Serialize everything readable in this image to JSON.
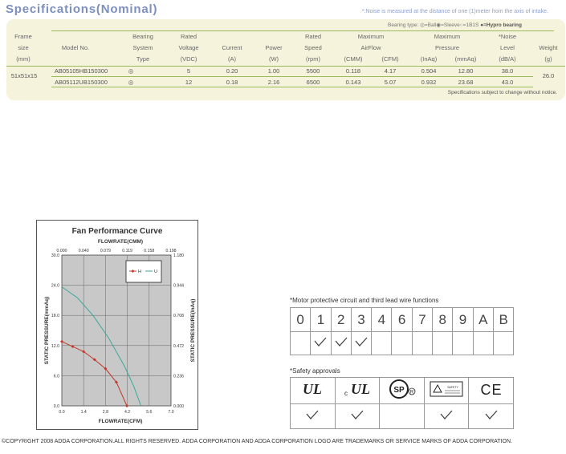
{
  "header": {
    "title": "Specifications(Nominal)",
    "noise_note": "*:Noise is measured at the distance of one (1)meter from the axis of intake."
  },
  "spec_table": {
    "bearing_legend_prefix": "Bearing type:",
    "bearing_legend_items": "◎=Ball◉=Sleeve○=1B1S",
    "bearing_legend_hypro": "●=Hypro bearing",
    "headers": {
      "frame_size": [
        "Frame",
        "size",
        "(mm)"
      ],
      "model": "Model No.",
      "bearing": [
        "Bearing",
        "System",
        "Type"
      ],
      "voltage": [
        "Rated",
        "Voltage",
        "(VDC)"
      ],
      "current": [
        "Current",
        "(A)"
      ],
      "power": [
        "Power",
        "(W)"
      ],
      "speed": [
        "Rated",
        "Speed",
        "(rpm)"
      ],
      "airflow": [
        "Maximum",
        "AirFlow"
      ],
      "airflow_units": [
        "(CMM)",
        "(CFM)"
      ],
      "pressure": [
        "Maximum",
        "Pressure"
      ],
      "pressure_units": [
        "(InAq)",
        "(mmAq)"
      ],
      "noise": [
        "*Noise",
        "Level",
        "(dB/A)"
      ],
      "weight": [
        "Weight",
        "(g)"
      ]
    },
    "frame_size_value": "51x51x15",
    "weight_value": "26.0",
    "rows": [
      {
        "model": "AB05105HB150300",
        "bearing": "◎",
        "voltage": "5",
        "current": "0.20",
        "power": "1.00",
        "speed": "5500",
        "cmm": "0.118",
        "cfm": "4.17",
        "inaq": "0.504",
        "mmaq": "12.80",
        "noise": "38.0"
      },
      {
        "model": "AB05112UB150300",
        "bearing": "◎",
        "voltage": "12",
        "current": "0.18",
        "power": "2.16",
        "speed": "6500",
        "cmm": "0.143",
        "cfm": "5.07",
        "inaq": "0.932",
        "mmaq": "23.68",
        "noise": "43.0"
      }
    ],
    "footer": "Specifications subject to change without notice."
  },
  "chart_data": {
    "type": "line",
    "title": "Fan Performance Curve",
    "xlabel": "FLOWRATE(CFM)",
    "x2label": "FLOWRATE(CMM)",
    "ylabel": "STATIC PRESSURE(mmAq)",
    "y2label": "STATIC PRESSURE(InAq)",
    "xlim": [
      0,
      7.0
    ],
    "ylim": [
      0,
      30.0
    ],
    "x_ticks": [
      "0.0",
      "1.4",
      "2.8",
      "4.2",
      "5.6",
      "7.0"
    ],
    "x_top_ticks": [
      "0.000",
      "0.040",
      "0.079",
      "0.119",
      "0.158",
      "0.198"
    ],
    "y_ticks": [
      "0.0",
      "6.0",
      "12.0",
      "18.0",
      "24.0",
      "30.0"
    ],
    "y_right_ticks": [
      "0.000",
      "0.236",
      "0.472",
      "0.708",
      "0.944",
      "1.180"
    ],
    "grid": true,
    "legend_position": "top-right",
    "series": [
      {
        "name": "H",
        "color": "#c0392b",
        "marker": "diamond",
        "x": [
          0,
          0.7,
          1.4,
          2.1,
          2.8,
          3.5,
          4.17
        ],
        "y": [
          12.8,
          11.8,
          10.8,
          9.2,
          7.4,
          4.7,
          0
        ]
      },
      {
        "name": "U",
        "color": "#3aa89a",
        "marker": "none",
        "x": [
          0,
          1.0,
          2.0,
          3.0,
          4.0,
          4.6,
          5.07
        ],
        "y": [
          23.68,
          21.5,
          18.0,
          13.5,
          8.0,
          4.0,
          0
        ]
      }
    ]
  },
  "motor": {
    "title": "*Motor protective circuit and third lead wire functions",
    "labels": [
      "0",
      "1",
      "2",
      "3",
      "4",
      "6",
      "7",
      "8",
      "9",
      "A",
      "B"
    ],
    "checked": [
      false,
      true,
      true,
      true,
      false,
      false,
      false,
      false,
      false,
      false,
      false
    ]
  },
  "safety": {
    "title": "*Safety approvals",
    "logos": [
      {
        "name": "ul-logo",
        "text": "UL"
      },
      {
        "name": "cul-logo",
        "prefix": "c",
        "text": "UL"
      },
      {
        "name": "csa-logo",
        "text": "SP"
      },
      {
        "name": "tuv-logo",
        "text": "SAFETY"
      },
      {
        "name": "ce-logo",
        "text": "CE"
      }
    ],
    "checked": [
      true,
      true,
      false,
      true,
      true
    ]
  },
  "footer": {
    "copyright": "©COPYRIGHT 2008 ADDA CORPORATION.ALL RIGHTS RESERVED. ADDA CORPORATION AND ADDA  CORPORATION LOGO ARE TRADEMARKS OR SERVICE MARKS OF ADDA CORPORATION."
  }
}
